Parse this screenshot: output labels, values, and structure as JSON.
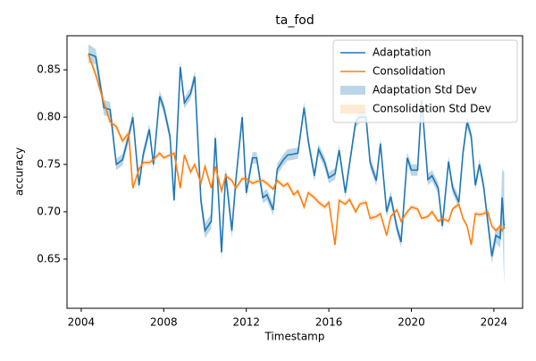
{
  "chart_data": {
    "type": "line",
    "title": "ta_fod",
    "x_label": "Timestamp",
    "y_label": "accuracy",
    "x": [
      2004.35,
      2004.7,
      2005.1,
      2005.4,
      2005.7,
      2006.0,
      2006.3,
      2006.5,
      2006.8,
      2007.0,
      2007.3,
      2007.5,
      2007.8,
      2008.0,
      2008.3,
      2008.5,
      2008.8,
      2009.0,
      2009.3,
      2009.5,
      2009.8,
      2010.0,
      2010.3,
      2010.5,
      2010.8,
      2011.0,
      2011.3,
      2011.5,
      2011.8,
      2012.0,
      2012.3,
      2012.5,
      2012.8,
      2013.0,
      2013.3,
      2013.5,
      2013.8,
      2014.0,
      2014.3,
      2014.5,
      2014.8,
      2015.0,
      2015.3,
      2015.5,
      2015.8,
      2016.0,
      2016.3,
      2016.5,
      2016.8,
      2017.0,
      2017.3,
      2017.5,
      2017.8,
      2018.0,
      2018.3,
      2018.5,
      2018.8,
      2019.0,
      2019.3,
      2019.5,
      2019.8,
      2020.0,
      2020.3,
      2020.5,
      2020.8,
      2021.0,
      2021.3,
      2021.5,
      2021.8,
      2022.0,
      2022.3,
      2022.5,
      2022.7,
      2022.9,
      2023.1,
      2023.3,
      2023.5,
      2023.7,
      2023.9,
      2024.1,
      2024.3,
      2024.4,
      2024.5
    ],
    "series": [
      {
        "name": "Adaptation",
        "color": "#1f77b4",
        "band_name": "Adaptation Std Dev",
        "band_color": "#1f77b4",
        "values": [
          0.867,
          0.864,
          0.81,
          0.808,
          0.75,
          0.755,
          0.78,
          0.8,
          0.728,
          0.76,
          0.787,
          0.75,
          0.822,
          0.81,
          0.78,
          0.712,
          0.853,
          0.815,
          0.825,
          0.843,
          0.712,
          0.68,
          0.69,
          0.778,
          0.657,
          0.74,
          0.68,
          0.735,
          0.8,
          0.72,
          0.757,
          0.757,
          0.715,
          0.718,
          0.702,
          0.745,
          0.755,
          0.76,
          0.761,
          0.762,
          0.81,
          0.775,
          0.738,
          0.766,
          0.752,
          0.736,
          0.74,
          0.765,
          0.72,
          0.75,
          0.795,
          0.8,
          0.8,
          0.752,
          0.733,
          0.772,
          0.7,
          0.716,
          0.683,
          0.668,
          0.757,
          0.744,
          0.744,
          0.818,
          0.734,
          0.738,
          0.725,
          0.685,
          0.753,
          0.725,
          0.71,
          0.762,
          0.795,
          0.78,
          0.728,
          0.75,
          0.727,
          0.69,
          0.653,
          0.675,
          0.672,
          0.715,
          0.682
        ],
        "std": [
          0.01,
          0.008,
          0.008,
          0.008,
          0.006,
          0.006,
          0.006,
          0.006,
          0.006,
          0.006,
          0.006,
          0.006,
          0.006,
          0.006,
          0.006,
          0.006,
          0.006,
          0.006,
          0.006,
          0.006,
          0.008,
          0.008,
          0.008,
          0.008,
          0.008,
          0.008,
          0.008,
          0.006,
          0.006,
          0.006,
          0.006,
          0.006,
          0.006,
          0.006,
          0.006,
          0.006,
          0.006,
          0.006,
          0.006,
          0.006,
          0.006,
          0.006,
          0.006,
          0.006,
          0.006,
          0.006,
          0.006,
          0.006,
          0.006,
          0.006,
          0.006,
          0.006,
          0.006,
          0.006,
          0.006,
          0.006,
          0.006,
          0.006,
          0.006,
          0.006,
          0.006,
          0.006,
          0.006,
          0.006,
          0.006,
          0.006,
          0.006,
          0.006,
          0.006,
          0.006,
          0.006,
          0.006,
          0.006,
          0.006,
          0.006,
          0.006,
          0.006,
          0.008,
          0.008,
          0.008,
          0.01,
          0.03,
          0.06
        ]
      },
      {
        "name": "Consolidation",
        "color": "#ff7f0e",
        "band_name": "Consolidation Std Dev",
        "band_color": "#ffbb78",
        "values": [
          0.866,
          0.845,
          0.815,
          0.795,
          0.79,
          0.775,
          0.783,
          0.725,
          0.745,
          0.752,
          0.752,
          0.755,
          0.762,
          0.757,
          0.76,
          0.762,
          0.725,
          0.76,
          0.742,
          0.75,
          0.73,
          0.748,
          0.725,
          0.748,
          0.722,
          0.738,
          0.733,
          0.725,
          0.735,
          0.735,
          0.73,
          0.732,
          0.733,
          0.73,
          0.724,
          0.733,
          0.727,
          0.73,
          0.718,
          0.722,
          0.705,
          0.72,
          0.715,
          0.71,
          0.705,
          0.71,
          0.665,
          0.712,
          0.708,
          0.713,
          0.7,
          0.708,
          0.71,
          0.693,
          0.695,
          0.698,
          0.675,
          0.695,
          0.702,
          0.69,
          0.7,
          0.705,
          0.703,
          0.693,
          0.695,
          0.7,
          0.69,
          0.693,
          0.69,
          0.703,
          0.708,
          0.693,
          0.685,
          0.665,
          0.698,
          0.697,
          0.698,
          0.7,
          0.685,
          0.68,
          0.685,
          0.68,
          0.685
        ],
        "std": [
          0.004,
          0.004,
          0.004,
          0.004,
          0.004,
          0.004,
          0.004,
          0.003,
          0.003,
          0.003,
          0.003,
          0.003,
          0.003,
          0.003,
          0.003,
          0.003,
          0.003,
          0.003,
          0.003,
          0.003,
          0.003,
          0.003,
          0.003,
          0.003,
          0.003,
          0.003,
          0.003,
          0.003,
          0.003,
          0.003,
          0.003,
          0.003,
          0.003,
          0.003,
          0.003,
          0.003,
          0.003,
          0.003,
          0.003,
          0.003,
          0.003,
          0.003,
          0.003,
          0.003,
          0.003,
          0.003,
          0.003,
          0.003,
          0.003,
          0.003,
          0.003,
          0.003,
          0.003,
          0.003,
          0.003,
          0.003,
          0.003,
          0.003,
          0.003,
          0.003,
          0.003,
          0.003,
          0.003,
          0.003,
          0.003,
          0.003,
          0.003,
          0.003,
          0.003,
          0.003,
          0.003,
          0.003,
          0.003,
          0.003,
          0.003,
          0.003,
          0.003,
          0.003,
          0.003,
          0.003,
          0.003,
          0.003,
          0.003
        ]
      }
    ],
    "xlim": [
      2003.31,
      2025.39
    ],
    "xticks": [
      2004,
      2008,
      2012,
      2016,
      2020,
      2024
    ],
    "ylim": [
      0.598,
      0.886
    ],
    "yticks": [
      0.65,
      {
        "value": 0.7,
        "label": "0.70"
      },
      0.75,
      {
        "value": 0.8,
        "label": "0.80"
      },
      0.85
    ],
    "legend": "upper right"
  }
}
